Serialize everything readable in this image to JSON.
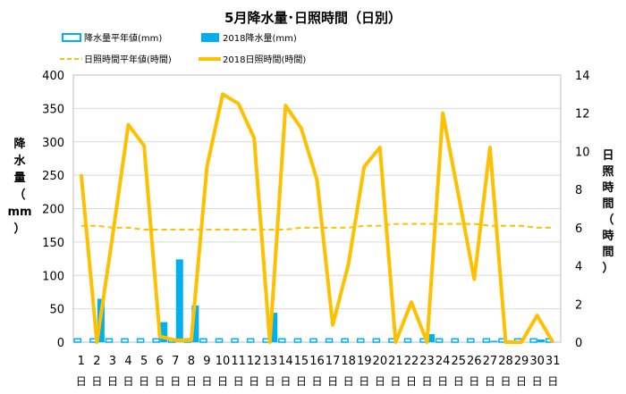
{
  "chart_data": {
    "type": "bar+line",
    "title": "5月降水量･日照時間（日別）",
    "ylabel_left": [
      "降",
      "水",
      "量",
      "（",
      "mm",
      "）"
    ],
    "ylabel_right": [
      "日",
      "照",
      "時",
      "間",
      "（",
      "時",
      "間",
      "）"
    ],
    "y_left_lim": [
      0,
      400
    ],
    "y_left_ticks": [
      "0",
      "50",
      "100",
      "150",
      "200",
      "250",
      "300",
      "350",
      "400"
    ],
    "y_right_lim": [
      0,
      14
    ],
    "y_right_ticks": [
      "0",
      "2",
      "4",
      "6",
      "8",
      "10",
      "12",
      "14"
    ],
    "day_suffix": "日",
    "categories": [
      "1",
      "2",
      "3",
      "4",
      "5",
      "6",
      "7",
      "8",
      "9",
      "10",
      "11",
      "12",
      "13",
      "14",
      "15",
      "16",
      "17",
      "18",
      "19",
      "20",
      "21",
      "22",
      "23",
      "24",
      "25",
      "26",
      "27",
      "28",
      "29",
      "30",
      "31"
    ],
    "legend": [
      {
        "label": "降水量平年値(mm)",
        "kind": "bar-outline",
        "color": "#00b0f0"
      },
      {
        "label": "2018降水量(mm)",
        "kind": "bar",
        "color": "#00b0f0"
      },
      {
        "label": "日照時間平年値(時間)",
        "kind": "dashed-line",
        "color": "#ffc000"
      },
      {
        "label": "2018日照時間(時間)",
        "kind": "line",
        "color": "#ffc000"
      }
    ],
    "series": [
      {
        "name": "降水量平年値(mm)",
        "axis": "left",
        "type": "bar-outline",
        "color": "#00b0f0",
        "values": [
          5,
          5,
          5,
          5,
          5,
          5,
          5,
          5,
          5,
          5,
          5,
          5,
          5,
          5,
          5,
          5,
          5,
          5,
          5,
          5,
          5,
          5,
          5,
          5,
          5,
          5,
          5,
          5,
          5,
          5,
          5
        ]
      },
      {
        "name": "2018降水量(mm)",
        "axis": "left",
        "type": "bar",
        "color": "#00b0f0",
        "values": [
          0,
          65,
          0,
          0,
          0,
          30,
          124,
          55,
          0,
          0,
          0,
          0,
          44,
          0,
          0,
          0,
          0,
          0,
          0,
          0,
          0,
          0,
          12,
          0,
          0,
          0,
          2,
          0,
          0,
          4,
          0
        ]
      },
      {
        "name": "日照時間平年値(時間)",
        "axis": "right",
        "type": "dashed-line",
        "color": "#ffc000",
        "values": [
          6.1,
          6.1,
          6.0,
          6.0,
          5.9,
          5.9,
          5.9,
          5.9,
          5.9,
          5.9,
          5.9,
          5.9,
          5.9,
          5.9,
          6.0,
          6.0,
          6.0,
          6.0,
          6.1,
          6.1,
          6.2,
          6.2,
          6.2,
          6.2,
          6.2,
          6.2,
          6.1,
          6.1,
          6.1,
          6.0,
          6.0
        ]
      },
      {
        "name": "2018日照時間(時間)",
        "axis": "right",
        "type": "line",
        "color": "#ffc000",
        "values": [
          8.8,
          0.0,
          5.6,
          11.4,
          10.3,
          0.3,
          0.1,
          0.1,
          9.2,
          13.0,
          12.5,
          10.7,
          0.0,
          12.4,
          11.2,
          8.5,
          0.9,
          4.1,
          9.2,
          10.2,
          0.0,
          2.1,
          0.0,
          12.0,
          7.7,
          3.3,
          10.2,
          0.0,
          0.0,
          1.4,
          0.0
        ]
      }
    ]
  }
}
